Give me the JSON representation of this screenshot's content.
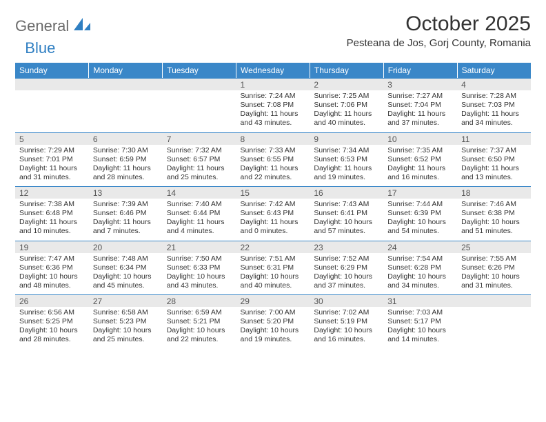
{
  "logo": {
    "general": "General",
    "blue": "Blue"
  },
  "title": "October 2025",
  "location": "Pesteana de Jos, Gorj County, Romania",
  "colors": {
    "header_bg": "#3a87c8",
    "header_text": "#ffffff",
    "daybar_bg": "#e9e9e9",
    "daybar_border": "#3a87c8",
    "body_text": "#333333",
    "logo_grey": "#6b6b6b",
    "logo_blue": "#2f7fc2"
  },
  "weekdays": [
    "Sunday",
    "Monday",
    "Tuesday",
    "Wednesday",
    "Thursday",
    "Friday",
    "Saturday"
  ],
  "first_weekday_index": 3,
  "days": [
    {
      "n": 1,
      "sr": "7:24 AM",
      "ss": "7:08 PM",
      "dl": "11 hours and 43 minutes."
    },
    {
      "n": 2,
      "sr": "7:25 AM",
      "ss": "7:06 PM",
      "dl": "11 hours and 40 minutes."
    },
    {
      "n": 3,
      "sr": "7:27 AM",
      "ss": "7:04 PM",
      "dl": "11 hours and 37 minutes."
    },
    {
      "n": 4,
      "sr": "7:28 AM",
      "ss": "7:03 PM",
      "dl": "11 hours and 34 minutes."
    },
    {
      "n": 5,
      "sr": "7:29 AM",
      "ss": "7:01 PM",
      "dl": "11 hours and 31 minutes."
    },
    {
      "n": 6,
      "sr": "7:30 AM",
      "ss": "6:59 PM",
      "dl": "11 hours and 28 minutes."
    },
    {
      "n": 7,
      "sr": "7:32 AM",
      "ss": "6:57 PM",
      "dl": "11 hours and 25 minutes."
    },
    {
      "n": 8,
      "sr": "7:33 AM",
      "ss": "6:55 PM",
      "dl": "11 hours and 22 minutes."
    },
    {
      "n": 9,
      "sr": "7:34 AM",
      "ss": "6:53 PM",
      "dl": "11 hours and 19 minutes."
    },
    {
      "n": 10,
      "sr": "7:35 AM",
      "ss": "6:52 PM",
      "dl": "11 hours and 16 minutes."
    },
    {
      "n": 11,
      "sr": "7:37 AM",
      "ss": "6:50 PM",
      "dl": "11 hours and 13 minutes."
    },
    {
      "n": 12,
      "sr": "7:38 AM",
      "ss": "6:48 PM",
      "dl": "11 hours and 10 minutes."
    },
    {
      "n": 13,
      "sr": "7:39 AM",
      "ss": "6:46 PM",
      "dl": "11 hours and 7 minutes."
    },
    {
      "n": 14,
      "sr": "7:40 AM",
      "ss": "6:44 PM",
      "dl": "11 hours and 4 minutes."
    },
    {
      "n": 15,
      "sr": "7:42 AM",
      "ss": "6:43 PM",
      "dl": "11 hours and 0 minutes."
    },
    {
      "n": 16,
      "sr": "7:43 AM",
      "ss": "6:41 PM",
      "dl": "10 hours and 57 minutes."
    },
    {
      "n": 17,
      "sr": "7:44 AM",
      "ss": "6:39 PM",
      "dl": "10 hours and 54 minutes."
    },
    {
      "n": 18,
      "sr": "7:46 AM",
      "ss": "6:38 PM",
      "dl": "10 hours and 51 minutes."
    },
    {
      "n": 19,
      "sr": "7:47 AM",
      "ss": "6:36 PM",
      "dl": "10 hours and 48 minutes."
    },
    {
      "n": 20,
      "sr": "7:48 AM",
      "ss": "6:34 PM",
      "dl": "10 hours and 45 minutes."
    },
    {
      "n": 21,
      "sr": "7:50 AM",
      "ss": "6:33 PM",
      "dl": "10 hours and 43 minutes."
    },
    {
      "n": 22,
      "sr": "7:51 AM",
      "ss": "6:31 PM",
      "dl": "10 hours and 40 minutes."
    },
    {
      "n": 23,
      "sr": "7:52 AM",
      "ss": "6:29 PM",
      "dl": "10 hours and 37 minutes."
    },
    {
      "n": 24,
      "sr": "7:54 AM",
      "ss": "6:28 PM",
      "dl": "10 hours and 34 minutes."
    },
    {
      "n": 25,
      "sr": "7:55 AM",
      "ss": "6:26 PM",
      "dl": "10 hours and 31 minutes."
    },
    {
      "n": 26,
      "sr": "6:56 AM",
      "ss": "5:25 PM",
      "dl": "10 hours and 28 minutes."
    },
    {
      "n": 27,
      "sr": "6:58 AM",
      "ss": "5:23 PM",
      "dl": "10 hours and 25 minutes."
    },
    {
      "n": 28,
      "sr": "6:59 AM",
      "ss": "5:21 PM",
      "dl": "10 hours and 22 minutes."
    },
    {
      "n": 29,
      "sr": "7:00 AM",
      "ss": "5:20 PM",
      "dl": "10 hours and 19 minutes."
    },
    {
      "n": 30,
      "sr": "7:02 AM",
      "ss": "5:19 PM",
      "dl": "10 hours and 16 minutes."
    },
    {
      "n": 31,
      "sr": "7:03 AM",
      "ss": "5:17 PM",
      "dl": "10 hours and 14 minutes."
    }
  ],
  "labels": {
    "sunrise": "Sunrise:",
    "sunset": "Sunset:",
    "daylight": "Daylight:"
  }
}
